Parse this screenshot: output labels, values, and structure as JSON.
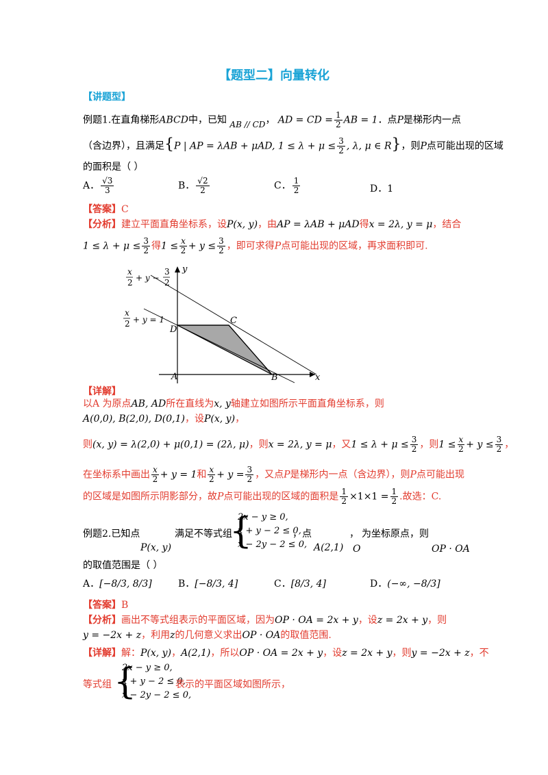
{
  "title": "【题型二】向量转化",
  "section": "【讲题型】",
  "ex1": {
    "label": "例题1.",
    "line1a": "在直角梯形",
    "abcd": "ABCD",
    "line1b": "中，已知",
    "cond1": "AB // CD",
    "cond2a": "AD = CD =",
    "cond2b": "AB = 1",
    "line1c": "．点",
    "p": "P",
    "line1d": "是梯形内一点",
    "line2a": "（含边界），且满足",
    "set": "P | AP = λAB + μAD, 1 ≤ λ + μ ≤",
    "set2": ", λ, μ ∈ R",
    "line2b": "，则",
    "line2c": "点可能出现的区域",
    "line3": "的面积是（    ）",
    "optA_label": "A．",
    "optA_num": "√3",
    "optA_den": "3",
    "optB_label": "B．",
    "optB_num": "√2",
    "optB_den": "2",
    "optC_label": "C．",
    "optC_num": "1",
    "optC_den": "2",
    "optD_label": "D．",
    "optD_val": "1",
    "answer_tag": "【答案】",
    "answer": "C",
    "analysis_tag": "【分析】",
    "analysis1": "建立平面直角坐标系，设",
    "pxy": "P(x, y)",
    "analysis1b": "，由",
    "vec": "AP = λAB + μAD",
    "analysis1c": "得",
    "res1": "x = 2λ, y = μ",
    "analysis1d": "，结合",
    "ineq1": "1 ≤ λ + μ ≤",
    "analysis2a": "得",
    "ineq2": "1 ≤",
    "ineq2b": "+ y ≤",
    "analysis2b": "，即可求得",
    "analysis2c": "点可能出现的区域，再求面积即可.",
    "detail_tag": "【详解】",
    "d1": "以A 为原点",
    "d1b": "AB, AD",
    "d1c": "所在直线为",
    "d1d": "x, y",
    "d1e": "轴建立如图所示平面直角坐标系，则",
    "d2": "A(0,0), B(2,0), D(0,1)",
    "d2b": "，设",
    "d2c": "P(x, y)",
    "d2d": "，",
    "d3a": "则",
    "d3": "(x, y) = λ(2,0) + μ(0,1) = (2λ, μ)",
    "d3b": "，则",
    "d3c": "x = 2λ, y = μ",
    "d3d": "，又",
    "d3e": "1 ≤ λ + μ ≤",
    "d3f": "，则",
    "d3g": "1 ≤",
    "d3h": "+ y ≤",
    "d3i": "，",
    "d4a": "在坐标系中画出",
    "d4b": "+ y = 1",
    "d4c": "和",
    "d4d": "+ y =",
    "d4e": "，又点",
    "d4f": "是梯形内一点（含边界），则",
    "d4g": "点可能出现",
    "d5a": "的区域是如图所示阴影部分，故",
    "d5b": "点可能出现的区域的面积是",
    "d5c": "×1×1 =",
    "d5d": ".故选：C."
  },
  "figure": {
    "lbl_y": "y",
    "lbl_x": "x",
    "lbl_A": "A",
    "lbl_B": "B",
    "lbl_C": "C",
    "lbl_D": "D",
    "eq_top_a": "x",
    "eq_top_b": "2",
    "eq_top_c": "+ y −",
    "eq_top_d": "3",
    "eq_top_e": "2",
    "eq_mid_a": "x",
    "eq_mid_b": "2",
    "eq_mid_c": "+ y = 1"
  },
  "ex2": {
    "label": "例题2.",
    "l1a": "已知点",
    "pxy": "P(x, y)",
    "l1b": "满足不等式组",
    "sys1": "2x − y ≥ 0,",
    "sys2": "x + y − 2 ≤ 0,",
    "sys3": "x − 2y − 2 ≤ 0,",
    "l1c": "，点",
    "a21": "A(2,1)",
    "l1d": "，",
    "o": "O",
    "l1e": "为坐标原点，则",
    "dot": "OP · OA",
    "l2": "的取值范围是（    ）",
    "optA_label": "A．",
    "optA": "[−8/3, 8/3]",
    "optB_label": "B．",
    "optB": "[−8/3, 4]",
    "optC_label": "C．",
    "optC": "[8/3, 4]",
    "optD_label": "D．",
    "optD": "(−∞, −8/3]",
    "answer_tag": "【答案】",
    "answer": "B",
    "analysis_tag": "【分析】",
    "an1": "画出不等式组表示的平面区域，因为",
    "an1b": "OP · OA = 2x + y",
    "an1c": "，设",
    "an1d": "z = 2x + y",
    "an1e": "，则",
    "an2a": "y = −2x + z",
    "an2b": "，利用",
    "an2c": "z",
    "an2d": "的几何意义求出",
    "an2e": "OP · OA",
    "an2f": "的取值范围.",
    "detail_tag": "【详解】",
    "de1": "解：",
    "de1b": "P(x, y)",
    "de1c": "，",
    "de1d": "A(2,1)",
    "de1e": "，所以",
    "de1f": "OP · OA = 2x + y",
    "de1g": "，设",
    "de1h": "z = 2x + y",
    "de1i": "，则",
    "de1j": "y = −2x + z",
    "de1k": "，不",
    "de2": "等式组",
    "de2b": "表示的平面区域如图所示，"
  }
}
